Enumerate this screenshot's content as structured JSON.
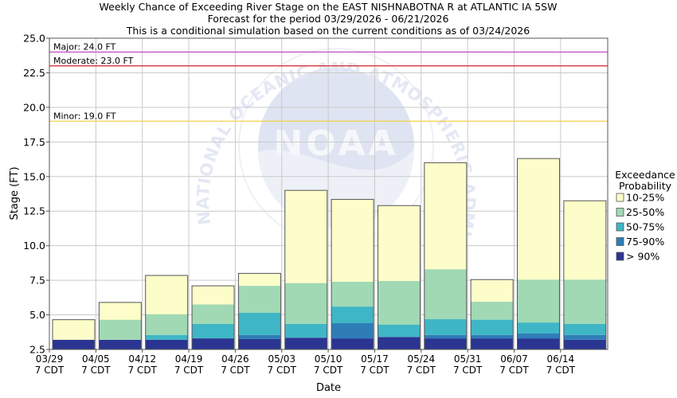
{
  "chart_data": {
    "type": "bar",
    "title_lines": [
      "Weekly Chance of Exceeding River Stage on the EAST NISHNABOTNA R at ATLANTIC IA 5SW",
      "Forecast for the period 03/29/2026 - 06/21/2026",
      "This is a conditional simulation based on the current conditions as of 03/24/2026"
    ],
    "xlabel": "Date",
    "ylabel": "Stage (FT)",
    "ylim": [
      2.5,
      25.0
    ],
    "y_ticks": [
      "2.5",
      "5.0",
      "7.5",
      "10.0",
      "12.5",
      "15.0",
      "17.5",
      "20.0",
      "22.5",
      "25.0"
    ],
    "grid": true,
    "x_ticks": [
      {
        "date": "03/29",
        "tz": "7 CDT"
      },
      {
        "date": "04/05",
        "tz": "7 CDT"
      },
      {
        "date": "04/12",
        "tz": "7 CDT"
      },
      {
        "date": "04/19",
        "tz": "7 CDT"
      },
      {
        "date": "04/26",
        "tz": "7 CDT"
      },
      {
        "date": "05/03",
        "tz": "7 CDT"
      },
      {
        "date": "05/10",
        "tz": "7 CDT"
      },
      {
        "date": "05/17",
        "tz": "7 CDT"
      },
      {
        "date": "05/24",
        "tz": "7 CDT"
      },
      {
        "date": "05/31",
        "tz": "7 CDT"
      },
      {
        "date": "06/07",
        "tz": "7 CDT"
      },
      {
        "date": "06/14",
        "tz": "7 CDT"
      }
    ],
    "bands": [
      {
        "name": "> 90%",
        "color": "#2b3592"
      },
      {
        "name": "75-90%",
        "color": "#2f7db7"
      },
      {
        "name": "50-75%",
        "color": "#3fb6c6"
      },
      {
        "name": "25-50%",
        "color": "#a0d9b3"
      },
      {
        "name": "10-25%",
        "color": "#fdfdc9"
      }
    ],
    "weeks": [
      {
        "levels": [
          2.5,
          3.2,
          3.2,
          3.2,
          3.2,
          4.65
        ]
      },
      {
        "levels": [
          2.5,
          3.2,
          3.2,
          3.2,
          4.65,
          5.9
        ]
      },
      {
        "levels": [
          2.5,
          3.2,
          3.2,
          3.55,
          5.05,
          7.85
        ]
      },
      {
        "levels": [
          2.5,
          3.3,
          3.3,
          4.35,
          5.75,
          7.1
        ]
      },
      {
        "levels": [
          2.5,
          3.25,
          3.55,
          5.15,
          7.1,
          8.0
        ]
      },
      {
        "levels": [
          2.5,
          3.35,
          3.35,
          4.35,
          7.3,
          14.0
        ]
      },
      {
        "levels": [
          2.5,
          3.3,
          4.4,
          5.6,
          7.4,
          13.35
        ]
      },
      {
        "levels": [
          2.5,
          3.4,
          3.4,
          4.3,
          7.45,
          12.9
        ]
      },
      {
        "levels": [
          2.5,
          3.3,
          3.55,
          4.7,
          8.3,
          16.0
        ]
      },
      {
        "levels": [
          2.5,
          3.3,
          3.55,
          4.65,
          5.95,
          7.55
        ]
      },
      {
        "levels": [
          2.5,
          3.3,
          3.65,
          4.45,
          7.55,
          16.3
        ]
      },
      {
        "levels": [
          2.5,
          3.2,
          3.55,
          4.35,
          7.55,
          13.25
        ]
      }
    ],
    "thresholds": [
      {
        "label": "Major: 24.0 FT",
        "value": 24.0,
        "color": "#c04ec0"
      },
      {
        "label": "Moderate: 23.0 FT",
        "value": 23.0,
        "color": "#d2202a"
      },
      {
        "label": "Minor: 19.0 FT",
        "value": 19.0,
        "color": "#f2d24e"
      }
    ],
    "legend": {
      "title_lines": [
        "Exceedance",
        "Probability"
      ],
      "placement": "right",
      "order": [
        "10-25%",
        "25-50%",
        "50-75%",
        "75-90%",
        "> 90%"
      ]
    },
    "watermark": {
      "logo_text": "NOAA",
      "ring_text": "NATIONAL OCEANIC AND ATMOSPHERIC ADMINISTRATION"
    }
  }
}
